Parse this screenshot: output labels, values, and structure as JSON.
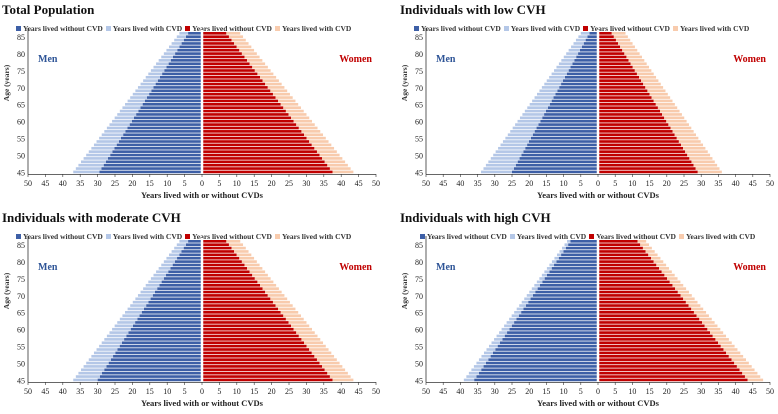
{
  "colors": {
    "men_without": "#3d5fa6",
    "men_with": "#b4c7e7",
    "women_without": "#c00000",
    "women_with": "#f8cbad",
    "men_label": "#2f5597",
    "women_label": "#c00000"
  },
  "labels": {
    "men": "Men",
    "women": "Women",
    "ylabel": "Age (years)",
    "xlabel": "Years lived with or without CVDs",
    "legend": [
      "Years lived without CVD",
      "Years lived with CVD",
      "Years lived without CVD",
      "Years lived with CVD"
    ]
  },
  "chart_data": [
    {
      "type": "bar",
      "title": "Total Population",
      "orientation": "horizontal-population-pyramid",
      "ages": [
        45,
        86
      ],
      "age_ticks": [
        45,
        50,
        55,
        60,
        65,
        70,
        75,
        80,
        85
      ],
      "x_ticks": [
        50,
        45,
        40,
        35,
        30,
        25,
        20,
        15,
        10,
        5,
        0,
        5,
        10,
        15,
        20,
        25,
        30,
        35,
        40,
        45,
        50
      ],
      "xlim": [
        -50,
        50
      ],
      "series": [
        {
          "name": "Men - Years lived without CVD",
          "value_at_45": 29.5,
          "value_at_86": 4
        },
        {
          "name": "Men - Years lived with CVD",
          "value_at_45": 7.5,
          "value_at_86": 2.5
        },
        {
          "name": "Women - Years lived without CVD",
          "value_at_45": 37.5,
          "value_at_86": 7
        },
        {
          "name": "Women - Years lived with CVD",
          "value_at_45": 6,
          "value_at_86": 4
        }
      ]
    },
    {
      "type": "bar",
      "title": "Individuals with low CVH",
      "orientation": "horizontal-population-pyramid",
      "ages": [
        45,
        86
      ],
      "age_ticks": [
        45,
        50,
        55,
        60,
        65,
        70,
        75,
        80,
        85
      ],
      "x_ticks": [
        50,
        45,
        40,
        35,
        30,
        25,
        20,
        15,
        10,
        5,
        0,
        5,
        10,
        15,
        20,
        25,
        30,
        35,
        40,
        45,
        50
      ],
      "xlim": [
        -50,
        50
      ],
      "series": [
        {
          "name": "Men - Years lived without CVD",
          "value_at_45": 25,
          "value_at_86": 2.5
        },
        {
          "name": "Men - Years lived with CVD",
          "value_at_45": 9,
          "value_at_86": 2.5
        },
        {
          "name": "Women - Years lived without CVD",
          "value_at_45": 29,
          "value_at_86": 4
        },
        {
          "name": "Women - Years lived with CVD",
          "value_at_45": 7,
          "value_at_86": 4
        }
      ]
    },
    {
      "type": "bar",
      "title": "Individuals with moderate CVH",
      "orientation": "horizontal-population-pyramid",
      "ages": [
        45,
        86
      ],
      "age_ticks": [
        45,
        50,
        55,
        60,
        65,
        70,
        75,
        80,
        85
      ],
      "x_ticks": [
        50,
        45,
        40,
        35,
        30,
        25,
        20,
        15,
        10,
        5,
        0,
        5,
        10,
        15,
        20,
        25,
        30,
        35,
        40,
        45,
        50
      ],
      "xlim": [
        -50,
        50
      ],
      "series": [
        {
          "name": "Men - Years lived without CVD",
          "value_at_45": 30,
          "value_at_86": 4
        },
        {
          "name": "Men - Years lived with CVD",
          "value_at_45": 7,
          "value_at_86": 2.5
        },
        {
          "name": "Women - Years lived without CVD",
          "value_at_45": 37.5,
          "value_at_86": 7
        },
        {
          "name": "Women - Years lived with CVD",
          "value_at_45": 6,
          "value_at_86": 4
        }
      ]
    },
    {
      "type": "bar",
      "title": "Individuals with high CVH",
      "orientation": "horizontal-population-pyramid",
      "ages": [
        45,
        86
      ],
      "age_ticks": [
        45,
        50,
        55,
        60,
        65,
        70,
        75,
        80,
        85
      ],
      "x_ticks": [
        50,
        45,
        40,
        35,
        30,
        25,
        20,
        15,
        10,
        5,
        0,
        5,
        10,
        15,
        20,
        25,
        30,
        35,
        40,
        45,
        50
      ],
      "xlim": [
        -50,
        50
      ],
      "series": [
        {
          "name": "Men - Years lived without CVD",
          "value_at_45": 36,
          "value_at_86": 8
        },
        {
          "name": "Men - Years lived with CVD",
          "value_at_45": 3,
          "value_at_86": 1
        },
        {
          "name": "Women - Years lived without CVD",
          "value_at_45": 43.5,
          "value_at_86": 11.5
        },
        {
          "name": "Women - Years lived with CVD",
          "value_at_45": 4.5,
          "value_at_86": 2.5
        }
      ]
    }
  ]
}
